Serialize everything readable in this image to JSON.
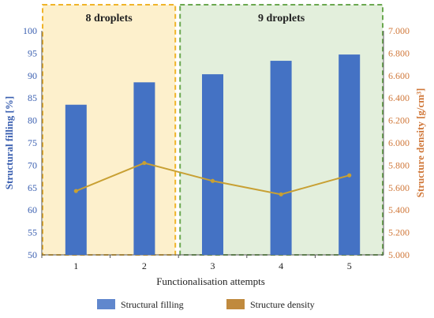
{
  "chart_data": {
    "type": "bar",
    "categories": [
      "1",
      "2",
      "3",
      "4",
      "5"
    ],
    "xlabel": "Functionalisation attempts",
    "ylabel": "Structural filling [%]",
    "y2label": "Structure density [g/cm³]",
    "ylim": [
      50,
      100
    ],
    "y2lim": [
      5.0,
      7.0
    ],
    "yticks": [
      "50",
      "55",
      "60",
      "65",
      "70",
      "75",
      "80",
      "85",
      "90",
      "95",
      "100"
    ],
    "y2ticks": [
      "5.000",
      "5.200",
      "5.400",
      "5.600",
      "5.800",
      "6.000",
      "6.200",
      "6.400",
      "6.600",
      "6.800",
      "7.000"
    ],
    "series": [
      {
        "name": "Structural filling",
        "type": "bar",
        "axis": "left",
        "color": "#4472c4",
        "values": [
          83.5,
          88.5,
          90.3,
          93.3,
          94.7
        ]
      },
      {
        "name": "Structure density",
        "type": "line",
        "axis": "right",
        "color": "#c8a033",
        "values": [
          5.57,
          5.82,
          5.66,
          5.54,
          5.71
        ]
      }
    ],
    "groups": [
      {
        "label": "8 droplets",
        "from": 0,
        "to": 1,
        "fill": "#fdf0cc",
        "stroke": "#f0b429"
      },
      {
        "label": "9 droplets",
        "from": 2,
        "to": 4,
        "fill": "#e3efdc",
        "stroke": "#6aa84f"
      }
    ],
    "legend": "bottom"
  }
}
